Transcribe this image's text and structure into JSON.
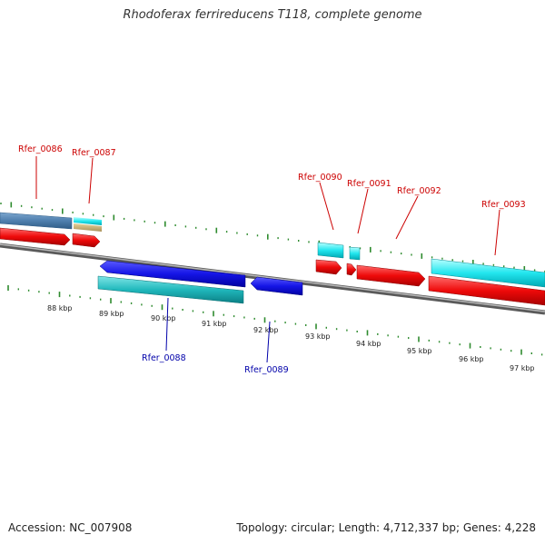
{
  "title": "Rhodoferax ferrireducens T118, complete genome",
  "footer": {
    "accession": "Accession: NC_007908",
    "summary": "Topology: circular; Length: 4,712,337 bp; Genes: 4,228"
  },
  "colors": {
    "label_top": "#cc0000",
    "label_bottom": "#0000aa",
    "tick": "#2e8b2e",
    "backbone": "#888888",
    "kbp_text": "#222222"
  },
  "scale": {
    "labels": [
      "88 kbp",
      "89 kbp",
      "90 kbp",
      "91 kbp",
      "92 kbp",
      "93 kbp",
      "94 kbp",
      "95 kbp",
      "96 kbp",
      "97 kbp"
    ]
  },
  "gene_labels_top": [
    "Rfer_0086",
    "Rfer_0087",
    "Rfer_0090",
    "Rfer_0091",
    "Rfer_0092",
    "Rfer_0093"
  ],
  "gene_labels_bottom": [
    "Rfer_0088",
    "Rfer_0089"
  ]
}
